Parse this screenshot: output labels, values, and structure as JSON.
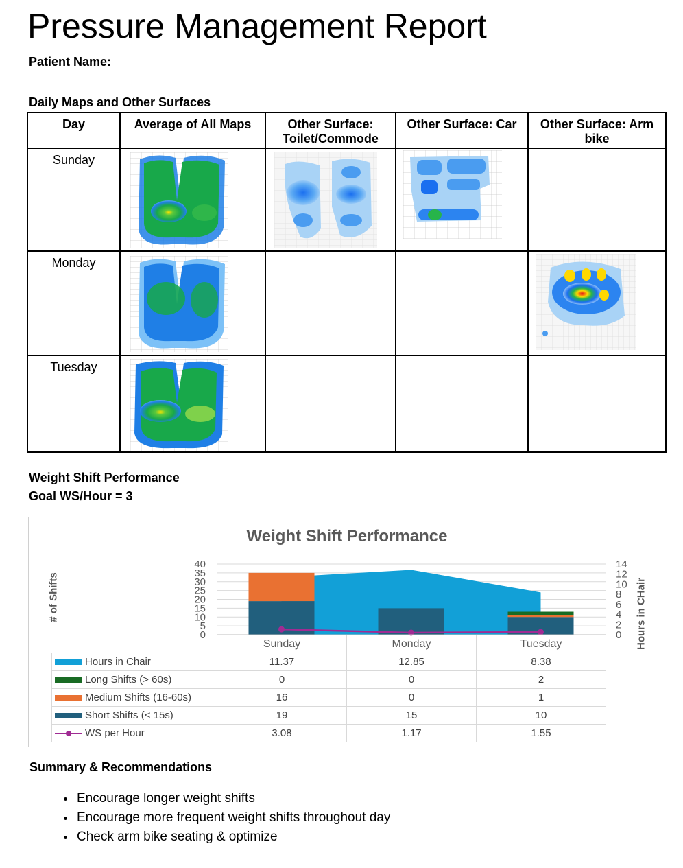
{
  "report": {
    "title": "Pressure Management Report",
    "patient_label": "Patient Name:"
  },
  "maps_section": {
    "heading": "Daily Maps and Other Surfaces",
    "columns": [
      "Day",
      "Average of All Maps",
      "Other Surface: Toilet/Commode",
      "Other Surface: Car",
      "Other Surface: Arm bike"
    ],
    "rows": [
      {
        "day": "Sunday",
        "maps": [
          true,
          true,
          true,
          false
        ]
      },
      {
        "day": "Monday",
        "maps": [
          true,
          false,
          false,
          true
        ]
      },
      {
        "day": "Tuesday",
        "maps": [
          true,
          false,
          false,
          false
        ]
      }
    ]
  },
  "ws_section": {
    "heading": "Weight Shift Performance",
    "goal": "Goal WS/Hour = 3"
  },
  "chart_data": {
    "type": "bar",
    "title": "Weight Shift Performance",
    "ylabel": "# of Shifts",
    "y2label": "Hours in CHair",
    "categories": [
      "Sunday",
      "Monday",
      "Tuesday"
    ],
    "ylim": [
      0,
      40
    ],
    "y2lim": [
      0,
      14
    ],
    "yticks": [
      "0",
      "5",
      "10",
      "15",
      "20",
      "25",
      "30",
      "35",
      "40"
    ],
    "y2ticks": [
      "0",
      "2",
      "4",
      "6",
      "8",
      "10",
      "12",
      "14"
    ],
    "series": [
      {
        "name": "Hours in Chair",
        "type": "area",
        "axis": "secondary",
        "color": "#12a0d7",
        "values": [
          11.37,
          12.85,
          8.38
        ],
        "display": [
          "11.37",
          "12.85",
          "8.38"
        ]
      },
      {
        "name": "Long Shifts (> 60s)",
        "type": "stacked-bar",
        "color": "#196b24",
        "values": [
          0,
          0,
          2
        ],
        "display": [
          "0",
          "0",
          "2"
        ]
      },
      {
        "name": "Medium Shifts (16-60s)",
        "type": "stacked-bar",
        "color": "#e97132",
        "values": [
          16,
          0,
          1
        ],
        "display": [
          "16",
          "0",
          "1"
        ]
      },
      {
        "name": "Short Shifts (< 15s)",
        "type": "stacked-bar",
        "color": "#215f7d",
        "values": [
          19,
          15,
          10
        ],
        "display": [
          "19",
          "15",
          "10"
        ]
      },
      {
        "name": "WS per Hour",
        "type": "line",
        "color": "#a02b93",
        "values": [
          3.08,
          1.17,
          1.55
        ],
        "display": [
          "3.08",
          "1.17",
          "1.55"
        ]
      }
    ],
    "grid": true,
    "legend": "data-table"
  },
  "summary": {
    "heading": "Summary & Recommendations",
    "items": [
      "Encourage longer weight shifts",
      "Encourage more frequent weight shifts throughout day",
      "Check arm bike seating & optimize"
    ]
  }
}
